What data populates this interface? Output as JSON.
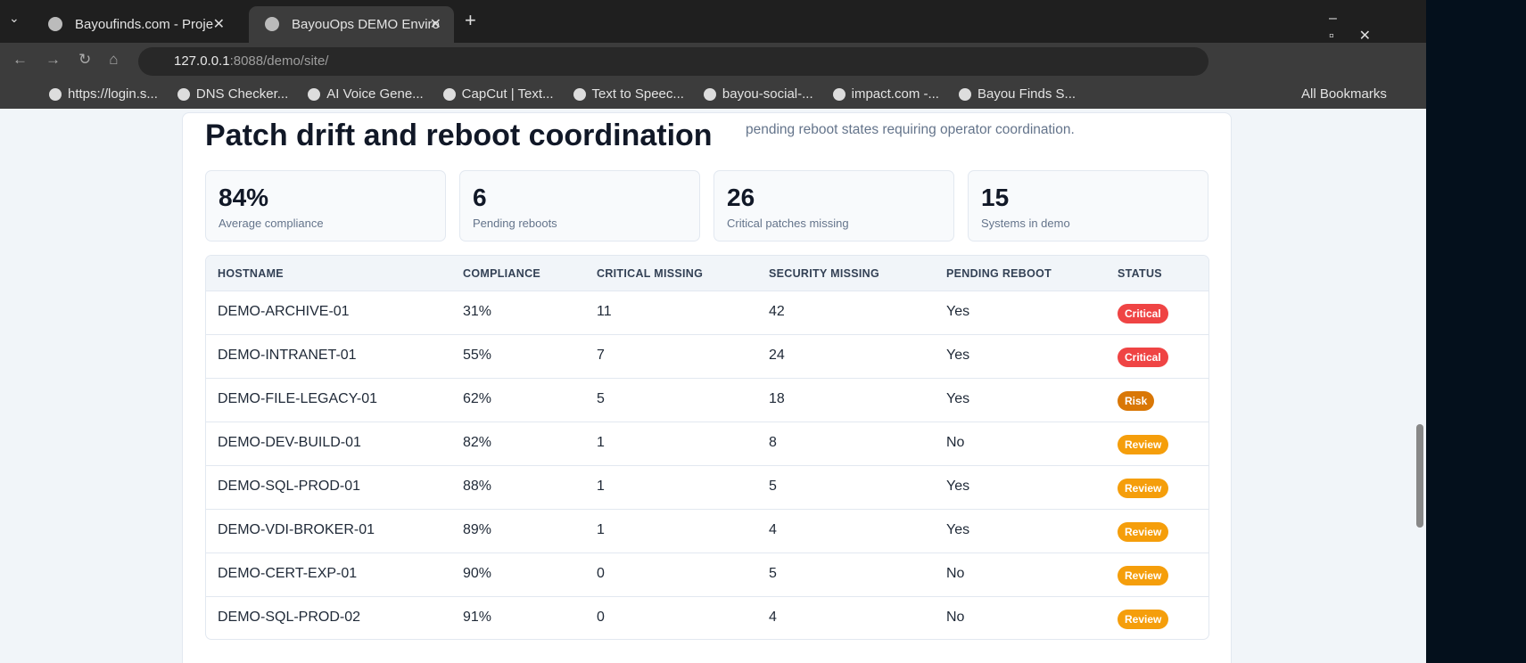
{
  "browser": {
    "tabs": [
      "Bayoufinds.com - Proje",
      "BayouOps DEMO Enviro"
    ],
    "url_host": "127.0.0.1",
    "url_path": ":8088/demo/site/",
    "bookmarks": [
      "https://login.s...",
      "DNS Checker...",
      "AI Voice Gene...",
      "CapCut | Text...",
      "Text to Speec...",
      "bayou-social-...",
      "impact.com -...",
      "Bayou Finds S..."
    ],
    "all_bookmarks": "All Bookmarks"
  },
  "page": {
    "heading": "Patch drift and reboot coordination",
    "description": "pending reboot states requiring operator coordination.",
    "stats": [
      {
        "value": "84%",
        "label": "Average compliance"
      },
      {
        "value": "6",
        "label": "Pending reboots"
      },
      {
        "value": "26",
        "label": "Critical patches missing"
      },
      {
        "value": "15",
        "label": "Systems in demo"
      }
    ],
    "table": {
      "headers": [
        "HOSTNAME",
        "COMPLIANCE",
        "CRITICAL MISSING",
        "SECURITY MISSING",
        "PENDING REBOOT",
        "STATUS"
      ],
      "rows": [
        [
          "DEMO-ARCHIVE-01",
          "31%",
          "11",
          "42",
          "Yes",
          "Critical"
        ],
        [
          "DEMO-INTRANET-01",
          "55%",
          "7",
          "24",
          "Yes",
          "Critical"
        ],
        [
          "DEMO-FILE-LEGACY-01",
          "62%",
          "5",
          "18",
          "Yes",
          "Risk"
        ],
        [
          "DEMO-DEV-BUILD-01",
          "82%",
          "1",
          "8",
          "No",
          "Review"
        ],
        [
          "DEMO-SQL-PROD-01",
          "88%",
          "1",
          "5",
          "Yes",
          "Review"
        ],
        [
          "DEMO-VDI-BROKER-01",
          "89%",
          "1",
          "4",
          "Yes",
          "Review"
        ],
        [
          "DEMO-CERT-EXP-01",
          "90%",
          "0",
          "5",
          "No",
          "Review"
        ],
        [
          "DEMO-SQL-PROD-02",
          "91%",
          "0",
          "4",
          "No",
          "Review"
        ]
      ]
    }
  }
}
